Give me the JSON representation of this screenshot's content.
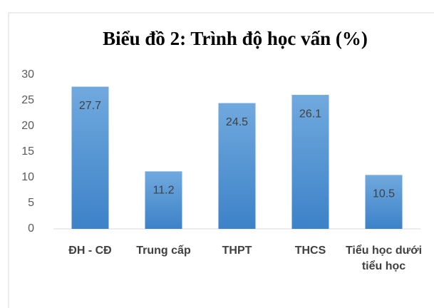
{
  "chart_data": {
    "type": "bar",
    "title": "Biểu đồ 2: Trình độ học vấn (%)",
    "categories": [
      "ĐH - CĐ",
      "Trung cấp",
      "THPT",
      "THCS",
      "Tiểu học dưới tiểu học"
    ],
    "values": [
      27.7,
      11.2,
      24.5,
      26.1,
      10.5
    ],
    "ylim": [
      0,
      30
    ],
    "yticks": [
      0,
      5,
      10,
      15,
      20,
      25,
      30
    ],
    "grid": false
  }
}
